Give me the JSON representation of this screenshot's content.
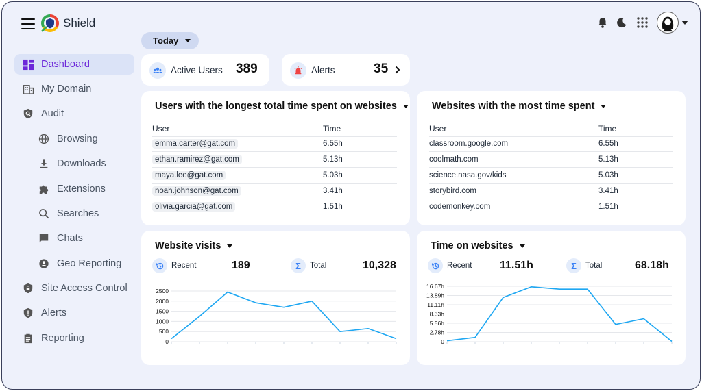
{
  "app": {
    "brand": "Shield"
  },
  "sidebar": {
    "items": [
      {
        "label": "Dashboard",
        "icon": "dashboard-icon",
        "active": true
      },
      {
        "label": "My Domain",
        "icon": "building-icon"
      },
      {
        "label": "Audit",
        "icon": "shield-search-icon"
      },
      {
        "label": "Browsing",
        "icon": "globe-icon",
        "sub": true
      },
      {
        "label": "Downloads",
        "icon": "download-icon",
        "sub": true
      },
      {
        "label": "Extensions",
        "icon": "puzzle-icon",
        "sub": true
      },
      {
        "label": "Searches",
        "icon": "search-icon",
        "sub": true
      },
      {
        "label": "Chats",
        "icon": "chat-icon",
        "sub": true
      },
      {
        "label": "Geo Reporting",
        "icon": "location-icon",
        "sub": true
      },
      {
        "label": "Site Access Control",
        "icon": "shield-lock-icon"
      },
      {
        "label": "Alerts",
        "icon": "shield-alert-icon"
      },
      {
        "label": "Reporting",
        "icon": "clipboard-icon"
      }
    ]
  },
  "filter": {
    "label": "Today"
  },
  "stats": {
    "active_users": {
      "label": "Active Users",
      "value": "389"
    },
    "alerts": {
      "label": "Alerts",
      "value": "35"
    }
  },
  "users_table": {
    "title": "Users with the longest total time spent on websites",
    "columns": [
      "User",
      "Time"
    ],
    "rows": [
      [
        "emma.carter@gat.com",
        "6.55h"
      ],
      [
        "ethan.ramirez@gat.com",
        "5.13h"
      ],
      [
        "maya.lee@gat.com",
        "5.03h"
      ],
      [
        "noah.johnson@gat.com",
        "3.41h"
      ],
      [
        "olivia.garcia@gat.com",
        "1.51h"
      ]
    ]
  },
  "sites_table": {
    "title": "Websites with the most time spent",
    "columns": [
      "User",
      "Time"
    ],
    "rows": [
      [
        "classroom.google.com",
        "6.55h"
      ],
      [
        "coolmath.com",
        "5.13h"
      ],
      [
        "science.nasa.gov/kids",
        "5.03h"
      ],
      [
        "storybird.com",
        "3.41h"
      ],
      [
        "codemonkey.com",
        "1.51h"
      ]
    ]
  },
  "visits": {
    "title": "Website visits",
    "recent_label": "Recent",
    "recent_value": "189",
    "total_label": "Total",
    "total_value": "10,328"
  },
  "time_sites": {
    "title": "Time on websites",
    "recent_label": "Recent",
    "recent_value": "11.51h",
    "total_label": "Total",
    "total_value": "68.18h"
  },
  "colors": {
    "accent": "#6d28d9",
    "line": "#1ea7f2",
    "alert": "#ef4444"
  },
  "chart_data": [
    {
      "type": "line",
      "title": "Website visits",
      "yticks": [
        "2500",
        "2000",
        "1500",
        "1000",
        "500",
        "0"
      ],
      "ylim": [
        0,
        2500
      ],
      "values": [
        150,
        1250,
        2450,
        1920,
        1700,
        2000,
        500,
        650,
        150
      ],
      "grid": true
    },
    {
      "type": "line",
      "title": "Time on websites",
      "yticks": [
        "16.67h",
        "13.89h",
        "11.11h",
        "8.33h",
        "5.56h",
        "2.78h",
        "0"
      ],
      "ylim": [
        0,
        16.67
      ],
      "values": [
        0.3,
        1.3,
        13.3,
        16.5,
        15.8,
        15.8,
        5.2,
        6.9,
        0.1
      ],
      "grid": true
    }
  ]
}
